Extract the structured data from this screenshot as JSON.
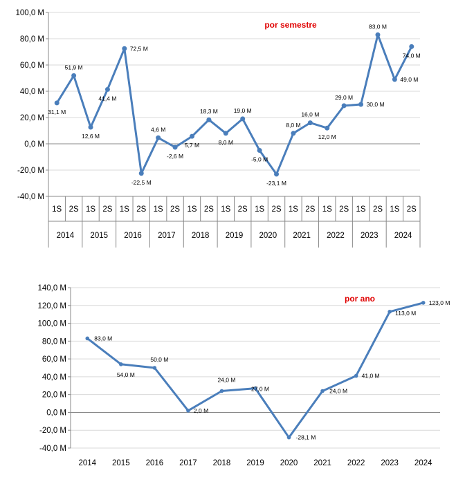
{
  "colors": {
    "line": "#4a7ebb",
    "title": "#e00000",
    "grid": "#d9d9d9",
    "axis": "#888888"
  },
  "chart_data": [
    {
      "type": "line",
      "title": "por semestre",
      "ylim": [
        -40,
        100
      ],
      "yticks": [
        -40,
        -20,
        0,
        20,
        40,
        60,
        80,
        100
      ],
      "ytick_labels": [
        "-40,0 M",
        "-20,0 M",
        "0,0 M",
        "20,0 M",
        "40,0 M",
        "60,0 M",
        "80,0 M",
        "100,0 M"
      ],
      "grid": true,
      "legend": "none",
      "groups": [
        "2014",
        "2015",
        "2016",
        "2017",
        "2018",
        "2019",
        "2020",
        "2021",
        "2022",
        "2023",
        "2024"
      ],
      "subcategories": [
        "1S",
        "2S"
      ],
      "series": [
        {
          "values": [
            31.1,
            51.9,
            12.6,
            41.4,
            72.5,
            -22.5,
            4.6,
            -2.6,
            5.7,
            18.3,
            8.0,
            19.0,
            -5.0,
            -23.1,
            8.0,
            16.0,
            12.0,
            29.0,
            30.0,
            83.0,
            49.0,
            74.0
          ],
          "labels": [
            "31,1 M",
            "51,9 M",
            "12,6 M",
            "41,4 M",
            "72,5 M",
            "-22,5 M",
            "4,6 M",
            "-2,6 M",
            "5,7 M",
            "18,3 M",
            "8,0 M",
            "19,0 M",
            "-5,0 M",
            "-23,1 M",
            "8,0 M",
            "16,0 M",
            "12,0 M",
            "29,0 M",
            "30,0 M",
            "83,0 M",
            "49,0 M",
            "74,0 M"
          ]
        }
      ]
    },
    {
      "type": "line",
      "title": "por ano",
      "ylim": [
        -40,
        140
      ],
      "yticks": [
        -40,
        -20,
        0,
        20,
        40,
        60,
        80,
        100,
        120,
        140
      ],
      "ytick_labels": [
        "-40,0 M",
        "-20,0 M",
        "0,0 M",
        "20,0 M",
        "40,0 M",
        "60,0 M",
        "80,0 M",
        "100,0 M",
        "120,0 M",
        "140,0 M"
      ],
      "grid": true,
      "legend": "none",
      "categories": [
        "2014",
        "2015",
        "2016",
        "2017",
        "2018",
        "2019",
        "2020",
        "2021",
        "2022",
        "2023",
        "2024"
      ],
      "series": [
        {
          "values": [
            83.0,
            54.0,
            50.0,
            2.0,
            24.0,
            27.0,
            -28.1,
            24.0,
            41.0,
            113.0,
            123.0
          ],
          "labels": [
            "83,0 M",
            "54,0 M",
            "50,0 M",
            "2,0 M",
            "24,0 M",
            "27,0 M",
            "-28,1 M",
            "24,0 M",
            "41,0 M",
            "113,0 M",
            "123,0 M"
          ]
        }
      ]
    }
  ]
}
